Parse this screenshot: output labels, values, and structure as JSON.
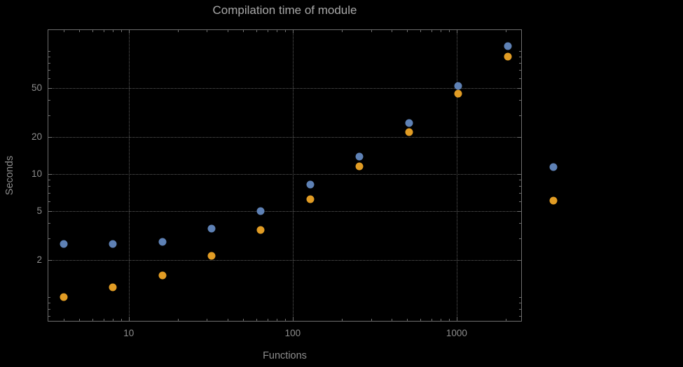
{
  "chart_data": {
    "type": "scatter",
    "title": "Compilation time of module",
    "xlabel": "Functions",
    "ylabel": "Seconds",
    "x_scale": "log",
    "y_scale": "log",
    "xlim": [
      3.2,
      2500
    ],
    "ylim": [
      0.63,
      150
    ],
    "x_ticks": [
      10,
      100,
      1000
    ],
    "y_ticks": [
      2,
      5,
      10,
      20,
      50
    ],
    "grid": "dotted",
    "legend_position": "right-outside",
    "x": [
      4,
      8,
      16,
      32,
      64,
      128,
      256,
      512,
      1024,
      2048
    ],
    "series": [
      {
        "name": "series-blue",
        "color": "#5e81b5",
        "values": [
          2.7,
          2.7,
          2.8,
          3.6,
          5.0,
          8.2,
          13.8,
          26,
          52,
          110
        ]
      },
      {
        "name": "series-orange",
        "color": "#e19c24",
        "values": [
          1.0,
          1.2,
          1.5,
          2.15,
          3.5,
          6.2,
          11.5,
          22,
          45,
          90
        ]
      }
    ],
    "legend_markers": [
      {
        "name": "legend-marker-blue",
        "color": "#5e81b5"
      },
      {
        "name": "legend-marker-orange",
        "color": "#e19c24"
      }
    ]
  },
  "colors": {
    "background": "#000000",
    "frame": "#6e6e6e",
    "grid": "#5d5d5d",
    "tick_text": "#8d8d8d",
    "title_text": "#a8a8a8"
  }
}
